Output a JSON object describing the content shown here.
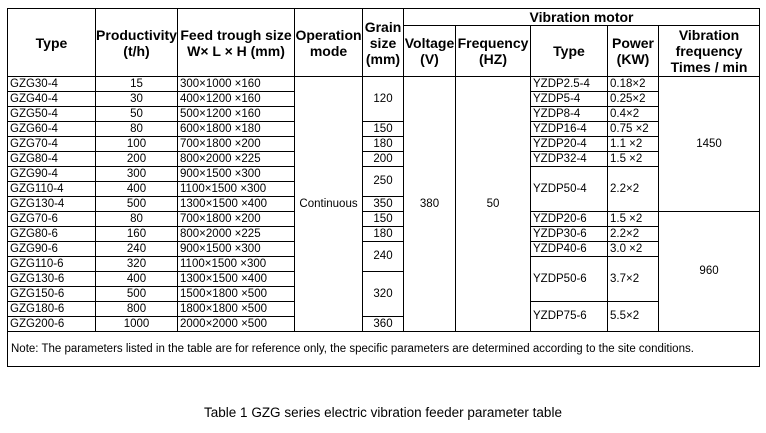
{
  "headers": {
    "type": "Type",
    "productivity": "Productivity (t/h)",
    "feed_trough_size": "Feed trough size W× L × H (mm)",
    "operation_mode": "Operation mode",
    "grain_size": "Grain size (mm)",
    "vibration_motor": "Vibration motor",
    "voltage": "Voltage (V)",
    "frequency": "Frequency (HZ)",
    "motor_type": "Type",
    "power": "Power (KW)",
    "vibration_frequency": "Vibration frequency Times / min"
  },
  "rows": [
    {
      "type": "GZG30-4",
      "productivity": "15",
      "size": "300×1000 ×160"
    },
    {
      "type": "GZG40-4",
      "productivity": "30",
      "size": "400×1200 ×160"
    },
    {
      "type": "GZG50-4",
      "productivity": "50",
      "size": "500×1200 ×160"
    },
    {
      "type": "GZG60-4",
      "productivity": "80",
      "size": "600×1800 ×180"
    },
    {
      "type": "GZG70-4",
      "productivity": "100",
      "size": "700×1800 ×200"
    },
    {
      "type": "GZG80-4",
      "productivity": "200",
      "size": "800×2000 ×225"
    },
    {
      "type": "GZG90-4",
      "productivity": "300",
      "size": "900×1500 ×300"
    },
    {
      "type": "GZG110-4",
      "productivity": "400",
      "size": "1100×1500 ×300"
    },
    {
      "type": "GZG130-4",
      "productivity": "500",
      "size": "1300×1500 ×400"
    },
    {
      "type": "GZG70-6",
      "productivity": "80",
      "size": "700×1800 ×200"
    },
    {
      "type": "GZG80-6",
      "productivity": "160",
      "size": "800×2000 ×225"
    },
    {
      "type": "GZG90-6",
      "productivity": "240",
      "size": "900×1500 ×300"
    },
    {
      "type": "GZG110-6",
      "productivity": "320",
      "size": "1100×1500 ×300"
    },
    {
      "type": "GZG130-6",
      "productivity": "400",
      "size": "1300×1500 ×400"
    },
    {
      "type": "GZG150-6",
      "productivity": "500",
      "size": "1500×1800 ×500"
    },
    {
      "type": "GZG180-6",
      "productivity": "800",
      "size": "1800×1800 ×500"
    },
    {
      "type": "GZG200-6",
      "productivity": "1000",
      "size": "2000×2000 ×500"
    }
  ],
  "operation_mode": "Continuous",
  "grain_sizes": [
    "120",
    "150",
    "180",
    "200",
    "250",
    "350",
    "150",
    "180",
    "240",
    "320",
    "360"
  ],
  "voltage": "380",
  "frequency": "50",
  "motors": [
    {
      "type": "YZDP2.5-4",
      "power": "0.18×2"
    },
    {
      "type": "YZDP5-4",
      "power": "0.25×2"
    },
    {
      "type": "YZDP8-4",
      "power": "0.4×2"
    },
    {
      "type": "YZDP16-4",
      "power": "0.75 ×2"
    },
    {
      "type": "YZDP20-4",
      "power": "1.1 ×2"
    },
    {
      "type": "YZDP32-4",
      "power": "1.5 ×2"
    },
    {
      "type": "YZDP50-4",
      "power": "2.2×2"
    },
    {
      "type": "YZDP20-6",
      "power": "1.5 ×2"
    },
    {
      "type": "YZDP30-6",
      "power": "2.2×2"
    },
    {
      "type": "YZDP40-6",
      "power": "3.0 ×2"
    },
    {
      "type": "YZDP50-6",
      "power": "3.7×2"
    },
    {
      "type": "YZDP75-6",
      "power": "5.5×2"
    }
  ],
  "vibration_frequencies": [
    "1450",
    "960"
  ],
  "note": "Note: The parameters listed in the table are for reference only, the specific  parameters are determined according to the site conditions.",
  "caption": "Table 1 GZG series electric vibration feeder parameter table"
}
